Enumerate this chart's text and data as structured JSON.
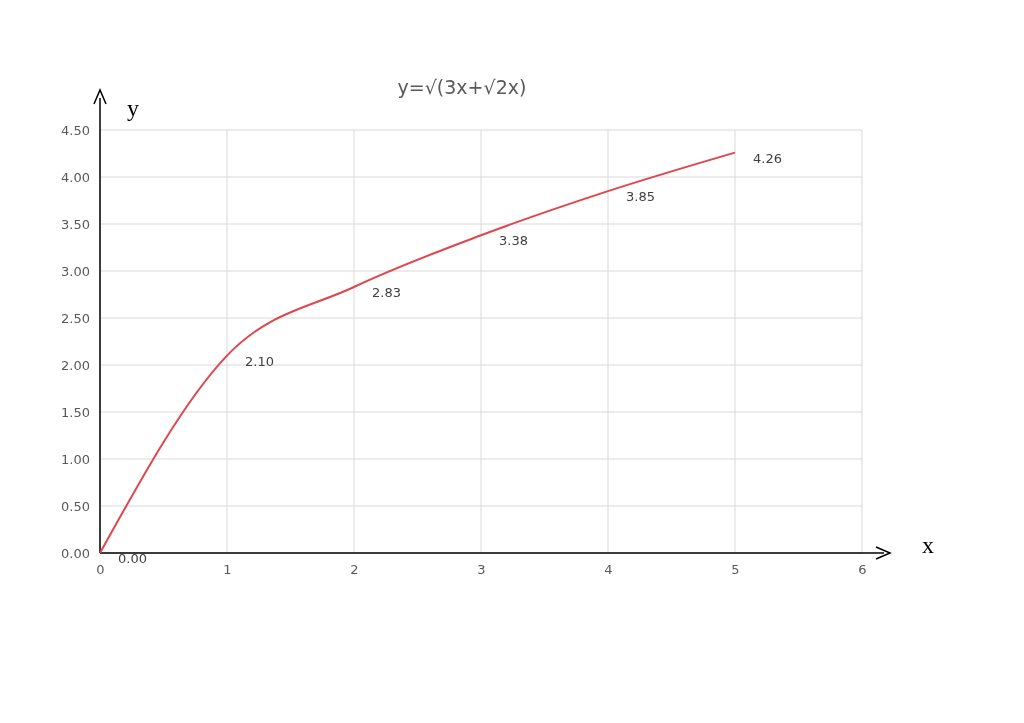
{
  "chart_data": {
    "type": "line",
    "title": "y=√(3x+√2x)",
    "xlabel": "x",
    "ylabel": "y",
    "x": [
      0,
      1,
      2,
      3,
      4,
      5
    ],
    "series": [
      {
        "color": "#e0474c",
        "values": [
          0.0,
          2.1,
          2.83,
          3.38,
          3.85,
          4.26
        ],
        "value_labels": [
          "0.00",
          "2.10",
          "2.83",
          "3.38",
          "3.85",
          "4.26"
        ]
      }
    ],
    "xlim": [
      0,
      6
    ],
    "xticks": [
      0,
      1,
      2,
      3,
      4,
      5,
      6
    ],
    "ylim": [
      0,
      4.5
    ],
    "yticks": [
      {
        "value": 0,
        "label": "0.00"
      },
      {
        "value": 0.5,
        "label": "0.50"
      },
      {
        "value": 1,
        "label": "1.00"
      },
      {
        "value": 1.5,
        "label": "1.50"
      },
      {
        "value": 2,
        "label": "2.00"
      },
      {
        "value": 2.5,
        "label": "2.50"
      },
      {
        "value": 3,
        "label": "3.00"
      },
      {
        "value": 3.5,
        "label": "3.50"
      },
      {
        "value": 4,
        "label": "4.00"
      },
      {
        "value": 4.5,
        "label": "4.50"
      }
    ],
    "grid": true,
    "marker": "none",
    "line_style": "solid"
  }
}
